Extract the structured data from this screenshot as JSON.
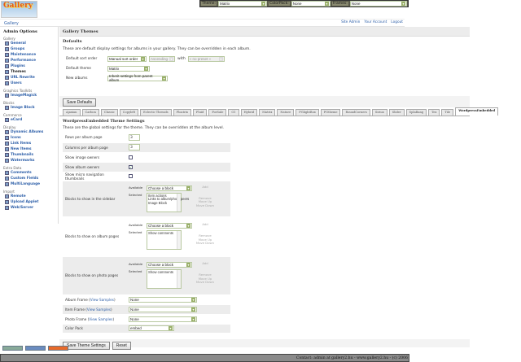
{
  "logo": {
    "text": "Gallery"
  },
  "topbar": {
    "theme_label": "Theme:",
    "theme_value": "Matrix",
    "colorpack_label": "ColorPack:",
    "colorpack_value": "None",
    "frames_label": "Frames:",
    "frames_value": "None"
  },
  "breadcrumb": "Gallery",
  "header_links": [
    "Site Admin",
    "Your Account",
    "Logout"
  ],
  "sidebar": {
    "title": "Admin Options",
    "groups": [
      {
        "name": "Gallery",
        "items": [
          "General",
          "Groups",
          "Maintenance",
          "Performance",
          "Plugins",
          "Themes",
          "URL Rewrite",
          "Users"
        ]
      },
      {
        "name": "Graphics Toolkits",
        "items": [
          "ImageMagick"
        ]
      },
      {
        "name": "Blocks",
        "items": [
          "Image Block"
        ]
      },
      {
        "name": "Commerce",
        "items": [
          "eCard"
        ]
      },
      {
        "name": "Display",
        "items": [
          "Dynamic Albums",
          "Icons",
          "Link Items",
          "New Items",
          "Thumbnails",
          "Watermarks"
        ]
      },
      {
        "name": "Extra Data",
        "items": [
          "Comments",
          "Custom Fields",
          "MultiLanguage"
        ]
      },
      {
        "name": "Import",
        "items": [
          "Remote",
          "Upload Applet",
          "Web/Server"
        ]
      }
    ],
    "current": "Themes"
  },
  "page_title": "Gallery Themes",
  "defaults": {
    "title": "Defaults",
    "description": "These are default display settings for albums in your gallery. They can be overridden in each album.",
    "sort_label": "Default sort order",
    "sort_value": "Manual sort order",
    "direction_value": "Ascending",
    "with_label": "with",
    "preset_value": "« no preset »",
    "theme_label": "Default theme",
    "theme_value": "Matrix",
    "new_albums_label": "New albums",
    "new_albums_value": "Inherit settings from parent album",
    "save_label": "Save Defaults"
  },
  "tabs": [
    "Ajaxian",
    "Carbon",
    "Classic",
    "Copyleft",
    "Eclectic Threads",
    "Floatrix",
    "Fluid",
    "ForSale",
    "G1",
    "Hybrid",
    "Matrix",
    "Nature",
    "PGlightBox",
    "PGtheme",
    "RoundCorners",
    "Siriux",
    "Slider",
    "SplaBang",
    "Tex",
    "Tile",
    "WordpressEmbedded"
  ],
  "active_tab": "WordpressEmbedded",
  "theme_settings": {
    "title": "WordpressEmbedded Theme Settings",
    "description": "These are the global settings for the theme. They can be overridden at the album level.",
    "rows_label": "Rows per album page",
    "rows_value": "3",
    "cols_label": "Columns per album page",
    "cols_value": "3",
    "image_owners_label": "Show image owners",
    "image_owners_checked": false,
    "album_owners_label": "Show album owners",
    "album_owners_checked": true,
    "micro_nav_label": "Show micro navigation thumbnails",
    "micro_nav_checked": false,
    "available_label": "Available",
    "selected_label": "Selected",
    "choose_block": "Choose a block",
    "add": "Add",
    "remove": "Remove",
    "move_up": "Move Up",
    "move_down": "Move Down",
    "sidebar_blocks_label": "Blocks to show in the sidebar",
    "sidebar_selected": "Item actions\nLinks to album/photo peers\nImage Block",
    "album_blocks_label": "Blocks to show on album pages",
    "album_selected": "Show comments",
    "photo_blocks_label": "Blocks to show on photo pages",
    "photo_selected": "Show comments",
    "album_frame_label": "Album Frame",
    "item_frame_label": "Item Frame",
    "photo_frame_label": "Photo Frame",
    "view_samples": "View Samples",
    "album_frame_value": "None",
    "item_frame_value": "None",
    "photo_frame_value": "None",
    "color_pack_label": "Color Pack",
    "color_pack_value": "embed",
    "save_label": "Save Theme Settings",
    "reset_label": "Reset"
  },
  "badges": [
    "Valid XHTML",
    "Gallery 2",
    "Powered by Gallery"
  ],
  "footer": "Contact: admin at gallery2.hu - www.gallery2.hu - (c) 2006"
}
